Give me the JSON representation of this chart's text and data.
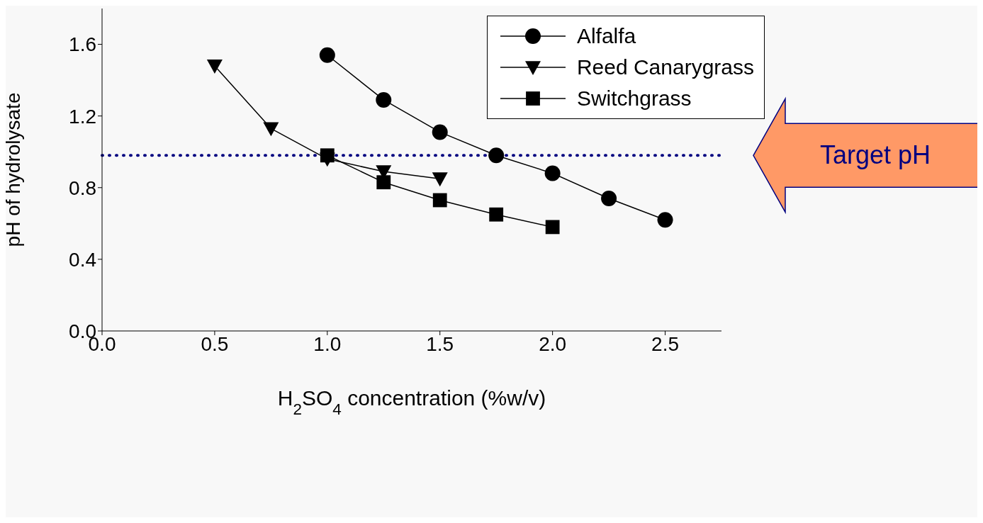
{
  "chart_data": {
    "type": "line",
    "xlabel": "H$_{2}$SO$_{4}$ concentration (%w/v)",
    "ylabel": "pH of hydrolysate",
    "xlim": [
      0,
      2.75
    ],
    "xticks": [
      {
        "value": 0,
        "label": "0.0"
      },
      {
        "value": 0.5,
        "label": "0.5"
      },
      {
        "value": 1,
        "label": "1.0"
      },
      {
        "value": 1.5,
        "label": "1.5"
      },
      {
        "value": 2,
        "label": "2.0"
      },
      {
        "value": 2.5,
        "label": "2.5"
      }
    ],
    "ylim": [
      0,
      1.8
    ],
    "yticks": [
      {
        "value": 0,
        "label": "0.0"
      },
      {
        "value": 0.4,
        "label": "0.4"
      },
      {
        "value": 0.8,
        "label": "0.8"
      },
      {
        "value": 1.2,
        "label": "1.2"
      },
      {
        "value": 1.6,
        "label": "1.6"
      }
    ],
    "grid": false,
    "legend": "top right",
    "line_style": "solid",
    "series": [
      {
        "name": "Alfalfa",
        "color": "#000000",
        "marker": "circle",
        "x": [
          1,
          1.25,
          1.5,
          1.75,
          2,
          2.25,
          2.5
        ],
        "values": [
          1.54,
          1.29,
          1.11,
          0.98,
          0.88,
          0.74,
          0.62
        ]
      },
      {
        "name": "Reed Canarygrass",
        "color": "#000000",
        "marker": "triangle",
        "x": [
          0.5,
          0.75,
          1,
          1.25,
          1.5
        ],
        "values": [
          1.48,
          1.13,
          0.96,
          0.89,
          0.85
        ]
      },
      {
        "name": "Switchgrass",
        "color": "#000000",
        "marker": "square",
        "x": [
          1,
          1.25,
          1.5,
          1.75,
          2
        ],
        "values": [
          0.98,
          0.83,
          0.73,
          0.65,
          0.58
        ]
      }
    ],
    "ref_lines": [
      {
        "axis": "y",
        "value": 0.98,
        "label": "Target pH",
        "color": "#000080",
        "line_style": "dotted"
      }
    ]
  }
}
